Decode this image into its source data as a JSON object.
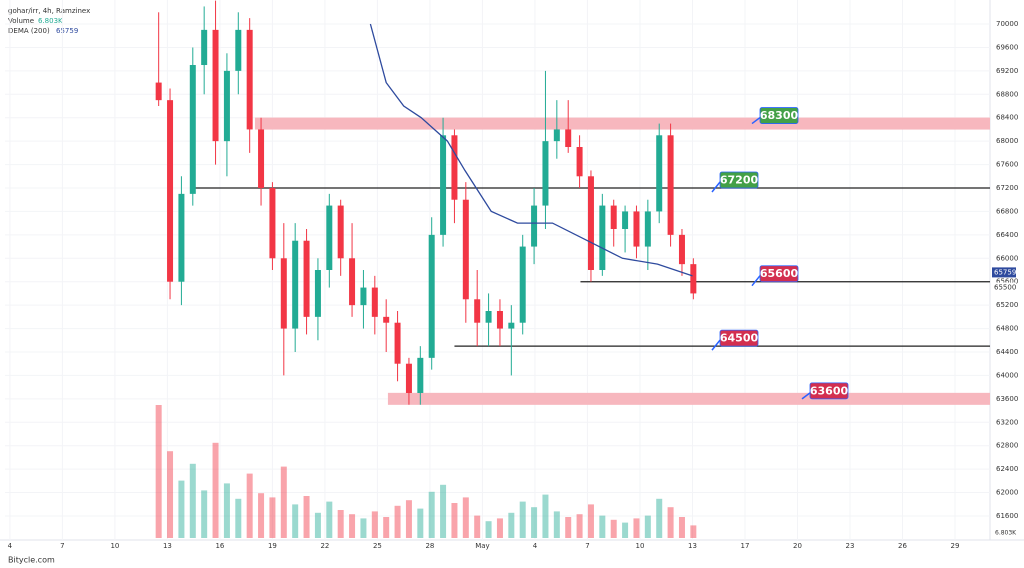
{
  "chart_data": {
    "type": "candlestick",
    "symbol": "gohar/irr, 4h, Ramzinex",
    "volume_label": "Volume",
    "volume_value": "6.803K",
    "dema_label": "DEMA (200)",
    "dema_value": 65759,
    "current_price": 65500,
    "watermark": "Bitycle.com",
    "up_color": "#22ab94",
    "down_color": "#f23645",
    "dema_color": "#2e4a9e",
    "xlim": [
      -0.28,
      56
    ],
    "xticks": [
      {
        "value": 0,
        "label": "4"
      },
      {
        "value": 3,
        "label": "7"
      },
      {
        "value": 6,
        "label": "10"
      },
      {
        "value": 9,
        "label": "13"
      },
      {
        "value": 12,
        "label": "16"
      },
      {
        "value": 15,
        "label": "19"
      },
      {
        "value": 18,
        "label": "22"
      },
      {
        "value": 21,
        "label": "25"
      },
      {
        "value": 24,
        "label": "28"
      },
      {
        "value": 27,
        "label": "May"
      },
      {
        "value": 30,
        "label": "4"
      },
      {
        "value": 33,
        "label": "7"
      },
      {
        "value": 36,
        "label": "10"
      },
      {
        "value": 39,
        "label": "13"
      },
      {
        "value": 42,
        "label": "17"
      },
      {
        "value": 45,
        "label": "20"
      },
      {
        "value": 48,
        "label": "23"
      },
      {
        "value": 51,
        "label": "26"
      },
      {
        "value": 54,
        "label": "29"
      }
    ],
    "ylim": [
      61190,
      70410
    ],
    "yticks": [
      61600,
      62000,
      62400,
      62800,
      63200,
      63600,
      64000,
      64400,
      64800,
      65200,
      65600,
      66000,
      66400,
      66800,
      67200,
      67600,
      68000,
      68400,
      68800,
      69200,
      69600,
      70000
    ],
    "vlim": [
      0,
      10
    ],
    "candles": [
      {
        "x": 8.5,
        "o": 69000,
        "h": 70200,
        "l": 68600,
        "c": 68700,
        "v": 9.5
      },
      {
        "x": 9.15,
        "o": 68700,
        "h": 68900,
        "l": 65300,
        "c": 65600,
        "v": 6.2
      },
      {
        "x": 9.8,
        "o": 65600,
        "h": 67400,
        "l": 65200,
        "c": 67100,
        "v": 4.1
      },
      {
        "x": 10.45,
        "o": 67100,
        "h": 69600,
        "l": 66900,
        "c": 69300,
        "v": 5.3
      },
      {
        "x": 11.1,
        "o": 69300,
        "h": 70300,
        "l": 68800,
        "c": 69900,
        "v": 3.4
      },
      {
        "x": 11.75,
        "o": 69900,
        "h": 70400,
        "l": 67600,
        "c": 68000,
        "v": 6.8
      },
      {
        "x": 12.4,
        "o": 68000,
        "h": 69500,
        "l": 67400,
        "c": 69200,
        "v": 3.9
      },
      {
        "x": 13.05,
        "o": 69200,
        "h": 70200,
        "l": 68800,
        "c": 69900,
        "v": 2.8
      },
      {
        "x": 13.7,
        "o": 69900,
        "h": 70100,
        "l": 67800,
        "c": 68200,
        "v": 4.6
      },
      {
        "x": 14.35,
        "o": 68200,
        "h": 68400,
        "l": 66900,
        "c": 67200,
        "v": 3.2
      },
      {
        "x": 15,
        "o": 67200,
        "h": 67300,
        "l": 65800,
        "c": 66000,
        "v": 2.9
      },
      {
        "x": 15.65,
        "o": 66000,
        "h": 66600,
        "l": 64000,
        "c": 64800,
        "v": 5.1
      },
      {
        "x": 16.3,
        "o": 64800,
        "h": 66600,
        "l": 64400,
        "c": 66300,
        "v": 2.4
      },
      {
        "x": 16.95,
        "o": 66300,
        "h": 66500,
        "l": 64700,
        "c": 65000,
        "v": 3.0
      },
      {
        "x": 17.6,
        "o": 65000,
        "h": 66000,
        "l": 64600,
        "c": 65800,
        "v": 1.8
      },
      {
        "x": 18.25,
        "o": 65800,
        "h": 67100,
        "l": 65500,
        "c": 66900,
        "v": 2.6
      },
      {
        "x": 18.9,
        "o": 66900,
        "h": 67000,
        "l": 65700,
        "c": 66000,
        "v": 2.0
      },
      {
        "x": 19.55,
        "o": 66000,
        "h": 66600,
        "l": 65000,
        "c": 65200,
        "v": 1.7
      },
      {
        "x": 20.2,
        "o": 65200,
        "h": 65800,
        "l": 64800,
        "c": 65500,
        "v": 1.4
      },
      {
        "x": 20.85,
        "o": 65500,
        "h": 65700,
        "l": 64700,
        "c": 65000,
        "v": 1.9
      },
      {
        "x": 21.5,
        "o": 65000,
        "h": 65300,
        "l": 64400,
        "c": 64900,
        "v": 1.5
      },
      {
        "x": 22.15,
        "o": 64900,
        "h": 65100,
        "l": 63900,
        "c": 64200,
        "v": 2.3
      },
      {
        "x": 22.8,
        "o": 64200,
        "h": 64300,
        "l": 63500,
        "c": 63700,
        "v": 2.7
      },
      {
        "x": 23.45,
        "o": 63700,
        "h": 64500,
        "l": 63500,
        "c": 64300,
        "v": 2.1
      },
      {
        "x": 24.1,
        "o": 64300,
        "h": 66700,
        "l": 64100,
        "c": 66400,
        "v": 3.3
      },
      {
        "x": 24.75,
        "o": 66400,
        "h": 68400,
        "l": 66200,
        "c": 68100,
        "v": 3.8
      },
      {
        "x": 25.4,
        "o": 68100,
        "h": 68200,
        "l": 66600,
        "c": 67000,
        "v": 2.5
      },
      {
        "x": 26.05,
        "o": 67000,
        "h": 67300,
        "l": 64900,
        "c": 65300,
        "v": 2.9
      },
      {
        "x": 26.7,
        "o": 65300,
        "h": 65800,
        "l": 64500,
        "c": 64900,
        "v": 1.6
      },
      {
        "x": 27.35,
        "o": 64900,
        "h": 65400,
        "l": 64500,
        "c": 65100,
        "v": 1.2
      },
      {
        "x": 28,
        "o": 65100,
        "h": 65300,
        "l": 64500,
        "c": 64800,
        "v": 1.4
      },
      {
        "x": 28.65,
        "o": 64800,
        "h": 65200,
        "l": 64000,
        "c": 64900,
        "v": 1.8
      },
      {
        "x": 29.3,
        "o": 64900,
        "h": 66400,
        "l": 64700,
        "c": 66200,
        "v": 2.6
      },
      {
        "x": 29.95,
        "o": 66200,
        "h": 67200,
        "l": 65900,
        "c": 66900,
        "v": 2.2
      },
      {
        "x": 30.6,
        "o": 66900,
        "h": 69200,
        "l": 66500,
        "c": 68000,
        "v": 3.1
      },
      {
        "x": 31.25,
        "o": 68000,
        "h": 68700,
        "l": 67700,
        "c": 68200,
        "v": 1.9
      },
      {
        "x": 31.9,
        "o": 68200,
        "h": 68700,
        "l": 67800,
        "c": 67900,
        "v": 1.5
      },
      {
        "x": 32.55,
        "o": 67900,
        "h": 68100,
        "l": 67200,
        "c": 67400,
        "v": 1.7
      },
      {
        "x": 33.2,
        "o": 67400,
        "h": 67500,
        "l": 65600,
        "c": 65800,
        "v": 2.4
      },
      {
        "x": 33.85,
        "o": 65800,
        "h": 67100,
        "l": 65700,
        "c": 66900,
        "v": 1.6
      },
      {
        "x": 34.5,
        "o": 66900,
        "h": 67000,
        "l": 66200,
        "c": 66500,
        "v": 1.3
      },
      {
        "x": 35.15,
        "o": 66500,
        "h": 66900,
        "l": 66100,
        "c": 66800,
        "v": 1.1
      },
      {
        "x": 35.8,
        "o": 66800,
        "h": 66900,
        "l": 66000,
        "c": 66200,
        "v": 1.4
      },
      {
        "x": 36.45,
        "o": 66200,
        "h": 67000,
        "l": 65800,
        "c": 66800,
        "v": 1.6
      },
      {
        "x": 37.1,
        "o": 66800,
        "h": 68300,
        "l": 66600,
        "c": 68100,
        "v": 2.8
      },
      {
        "x": 37.75,
        "o": 68100,
        "h": 68300,
        "l": 66200,
        "c": 66400,
        "v": 2.2
      },
      {
        "x": 38.4,
        "o": 66400,
        "h": 66500,
        "l": 65700,
        "c": 65900,
        "v": 1.5
      },
      {
        "x": 39.05,
        "o": 65900,
        "h": 66000,
        "l": 65300,
        "c": 65400,
        "v": 0.9
      }
    ],
    "dema": {
      "x": [
        20.6,
        21.5,
        22.5,
        23.5,
        25,
        26,
        27.5,
        29,
        31,
        33,
        35,
        37,
        39
      ],
      "values": [
        70000,
        69000,
        68600,
        68400,
        68000,
        67500,
        66800,
        66600,
        66600,
        66300,
        66000,
        65900,
        65700
      ]
    },
    "levels": [
      {
        "value": 68300,
        "from": 14,
        "kind": "zone",
        "color": "#43a047"
      },
      {
        "value": 67200,
        "from": 10.3,
        "kind": "line",
        "color": "#43a047"
      },
      {
        "value": 65600,
        "from": 32.6,
        "kind": "line",
        "color": "#d32f4f"
      },
      {
        "value": 64500,
        "from": 25.4,
        "kind": "line",
        "color": "#d32f4f"
      },
      {
        "value": 63600,
        "from": 21.6,
        "kind": "zone",
        "color": "#d32f4f"
      }
    ]
  }
}
